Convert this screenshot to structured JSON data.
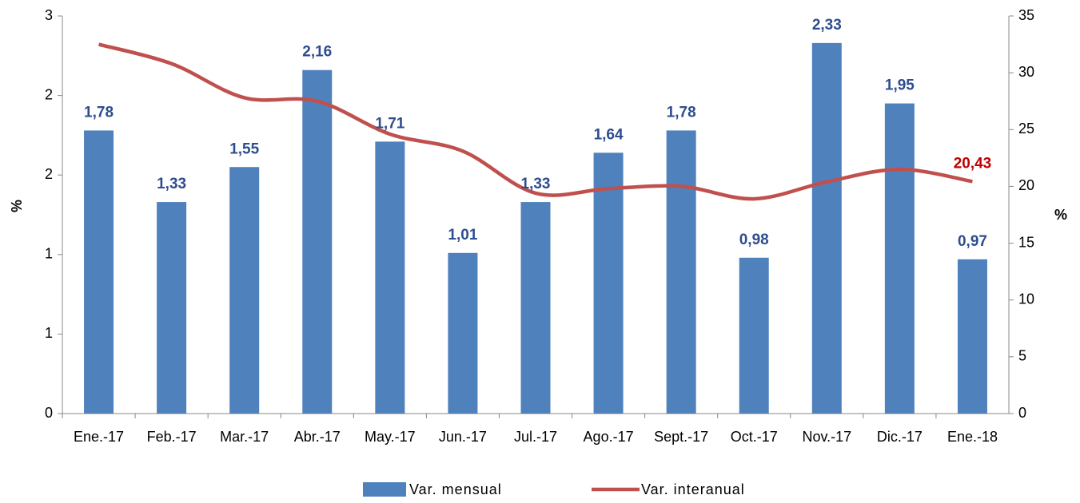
{
  "chart_data": {
    "type": "bar_line",
    "categories": [
      "Ene.-17",
      "Feb.-17",
      "Mar.-17",
      "Abr.-17",
      "May.-17",
      "Jun.-17",
      "Jul.-17",
      "Ago.-17",
      "Sept.-17",
      "Oct.-17",
      "Nov.-17",
      "Dic.-17",
      "Ene.-18"
    ],
    "ylabel": "%",
    "y2label": "%",
    "ylim": [
      0,
      2.5
    ],
    "yticks": [
      0,
      {
        "value": 0.5,
        "label": "1"
      },
      {
        "value": 1,
        "label": "1"
      },
      {
        "value": 1.5,
        "label": "2"
      },
      {
        "value": 2,
        "label": "2"
      },
      {
        "value": 2.5,
        "label": "3"
      }
    ],
    "y2lim": [
      0,
      35
    ],
    "y2ticks": [
      0,
      5,
      10,
      15,
      20,
      25,
      30,
      35
    ],
    "series": [
      {
        "name": "Var. mensual",
        "type": "bar",
        "color": "#4f81bd",
        "values": [
          1.78,
          1.33,
          1.55,
          2.16,
          1.71,
          1.01,
          1.33,
          1.64,
          1.78,
          0.98,
          2.33,
          1.95,
          0.97
        ],
        "value_labels": [
          "1,78",
          "1,33",
          "1,55",
          "2,16",
          "1,71",
          "1,01",
          "1,33",
          "1,64",
          "1,78",
          "0,98",
          "2,33",
          "1,95",
          "0,97"
        ]
      },
      {
        "name": "Var. interanual",
        "type": "line",
        "axis": "y2",
        "color": "#c0504d",
        "values": [
          32.5,
          30.8,
          27.8,
          27.5,
          24.6,
          23.1,
          19.4,
          19.8,
          20.0,
          18.9,
          20.4,
          21.5,
          20.43
        ],
        "value_labels": [
          null,
          null,
          null,
          null,
          null,
          null,
          null,
          null,
          null,
          null,
          null,
          null,
          "20,43"
        ]
      }
    ]
  }
}
